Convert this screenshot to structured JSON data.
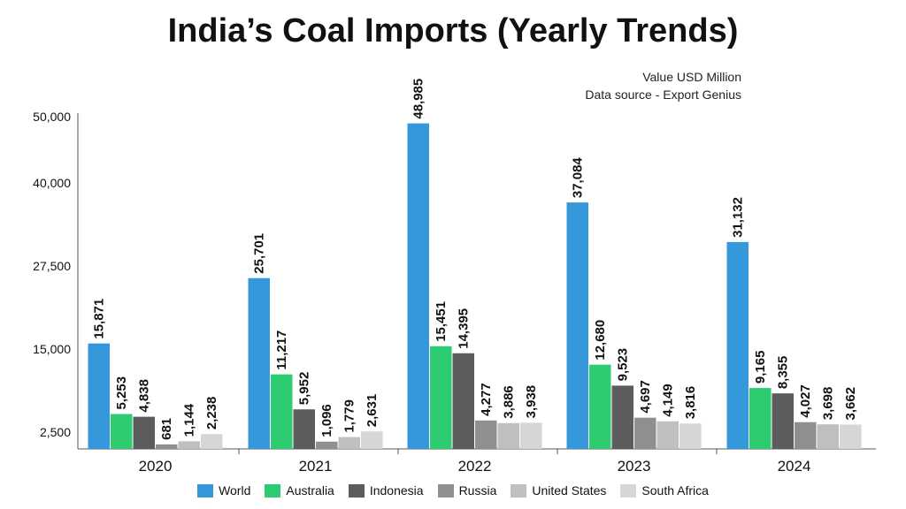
{
  "title": "India’s Coal Imports (Yearly Trends)",
  "notes": [
    "Value USD Million",
    "Data source - Export Genius"
  ],
  "chart_data": {
    "type": "bar",
    "title": "India’s Coal Imports (Yearly Trends)",
    "xlabel": "",
    "ylabel": "",
    "categories": [
      "2020",
      "2021",
      "2022",
      "2023",
      "2024"
    ],
    "yticks": [
      2500,
      15000,
      27500,
      40000,
      50000
    ],
    "ytick_labels": [
      "2,500",
      "15,000",
      "27,500",
      "40,000",
      "50,000"
    ],
    "grid": false,
    "legend_position": "bottom",
    "series": [
      {
        "name": "World",
        "color": "#3498db",
        "values": [
          15871,
          25701,
          48985,
          37084,
          31132
        ]
      },
      {
        "name": "Australia",
        "color": "#2ecc71",
        "values": [
          5253,
          11217,
          15451,
          12680,
          9165
        ]
      },
      {
        "name": "Indonesia",
        "color": "#5c5c5c",
        "values": [
          4838,
          5952,
          14395,
          9523,
          8355
        ]
      },
      {
        "name": "Russia",
        "color": "#8f8f8f",
        "values": [
          681,
          1096,
          4277,
          4697,
          4027
        ]
      },
      {
        "name": "United States",
        "color": "#bfbfbf",
        "values": [
          1144,
          1779,
          3886,
          4149,
          3698
        ]
      },
      {
        "name": "South Africa",
        "color": "#d6d6d6",
        "values": [
          2238,
          2631,
          3938,
          3816,
          3662
        ]
      }
    ]
  }
}
